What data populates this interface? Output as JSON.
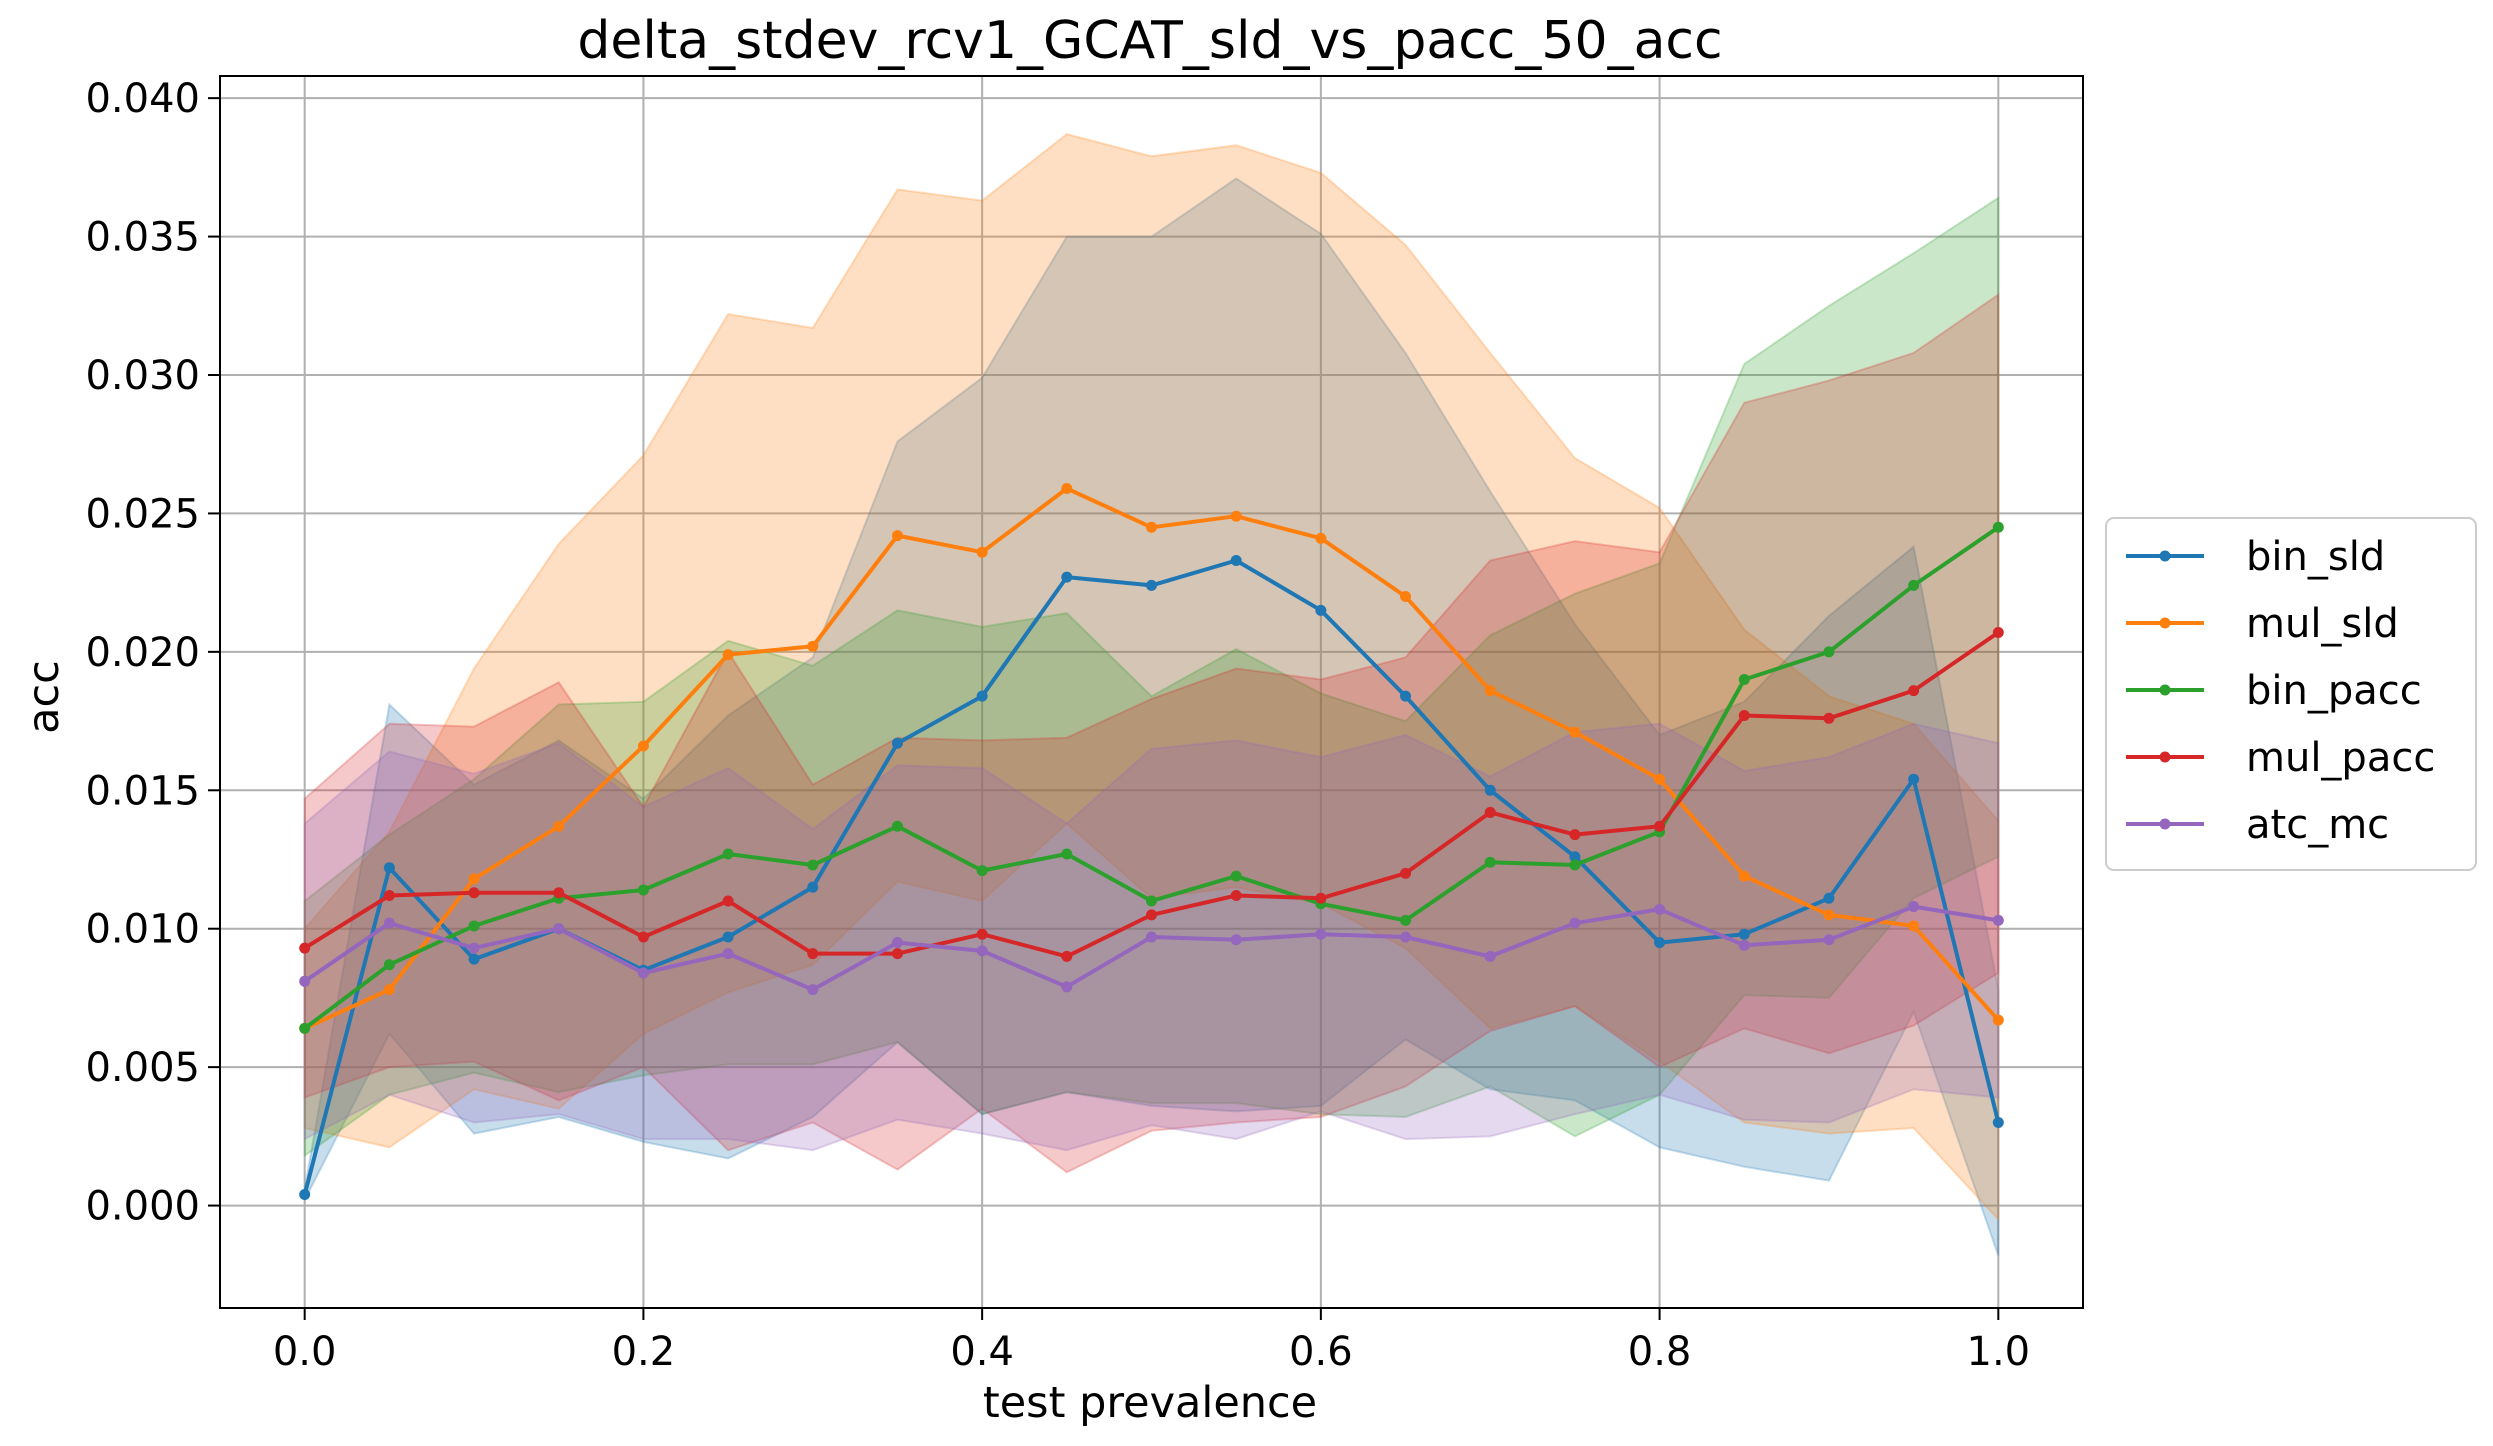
{
  "chart_data": {
    "type": "line",
    "title": "delta_stdev_rcv1_GCAT_sld_vs_pacc_50_acc",
    "xlabel": "test prevalence",
    "ylabel": "acc",
    "xlim": [
      -0.05,
      1.05
    ],
    "ylim": [
      -0.0037,
      0.0408
    ],
    "grid": true,
    "legend_position": "right-outside",
    "x": [
      0.0,
      0.05,
      0.1,
      0.15,
      0.2,
      0.25,
      0.3,
      0.35,
      0.4,
      0.45,
      0.5,
      0.55,
      0.6,
      0.65,
      0.7,
      0.75,
      0.8,
      0.85,
      0.9,
      0.95,
      1.0
    ],
    "x_ticks": [
      "0.0",
      "0.2",
      "0.4",
      "0.6",
      "0.8",
      "1.0"
    ],
    "y_ticks": [
      "0.000",
      "0.005",
      "0.010",
      "0.015",
      "0.020",
      "0.025",
      "0.030",
      "0.035",
      "0.040"
    ],
    "series": [
      {
        "name": "bin_sld",
        "color": "#1f77b4",
        "values": [
          0.0004,
          0.0122,
          0.0089,
          0.01,
          0.0085,
          0.0097,
          0.0115,
          0.0167,
          0.0184,
          0.0227,
          0.0224,
          0.0233,
          0.0215,
          0.0184,
          0.015,
          0.0126,
          0.0095,
          0.0098,
          0.0111,
          0.0154,
          0.003
        ],
        "band_lower": [
          0.0002,
          0.0062,
          0.0026,
          0.0032,
          0.0023,
          0.0017,
          0.0032,
          0.0059,
          0.0033,
          0.0041,
          0.0036,
          0.0034,
          0.0036,
          0.006,
          0.0042,
          0.0038,
          0.0021,
          0.0014,
          0.0009,
          0.007,
          -0.0018
        ],
        "band_upper": [
          0.0006,
          0.0181,
          0.0152,
          0.0168,
          0.0147,
          0.0177,
          0.0198,
          0.0276,
          0.0299,
          0.035,
          0.035,
          0.0371,
          0.0351,
          0.0308,
          0.0258,
          0.021,
          0.017,
          0.0182,
          0.0213,
          0.0238,
          0.0078
        ]
      },
      {
        "name": "mul_sld",
        "color": "#ff7f0e",
        "values": [
          0.0064,
          0.0078,
          0.0118,
          0.0137,
          0.0166,
          0.0199,
          0.0202,
          0.0242,
          0.0236,
          0.0259,
          0.0245,
          0.0249,
          0.0241,
          0.022,
          0.0186,
          0.0171,
          0.0154,
          0.0119,
          0.0105,
          0.0101,
          0.0067
        ],
        "band_lower": [
          0.0028,
          0.0021,
          0.0042,
          0.0035,
          0.0062,
          0.0077,
          0.0087,
          0.0117,
          0.011,
          0.0138,
          0.0111,
          0.0115,
          0.0109,
          0.0093,
          0.0064,
          0.0072,
          0.0052,
          0.003,
          0.0026,
          0.0028,
          -0.0005
        ],
        "band_upper": [
          0.01,
          0.0135,
          0.0194,
          0.0239,
          0.0271,
          0.0322,
          0.0317,
          0.0367,
          0.0363,
          0.0387,
          0.0379,
          0.0383,
          0.0373,
          0.0347,
          0.0308,
          0.027,
          0.0252,
          0.0208,
          0.0184,
          0.0174,
          0.0139
        ]
      },
      {
        "name": "bin_pacc",
        "color": "#2ca02c",
        "values": [
          0.0064,
          0.0087,
          0.0101,
          0.0111,
          0.0114,
          0.0127,
          0.0123,
          0.0137,
          0.0121,
          0.0127,
          0.011,
          0.0119,
          0.0109,
          0.0103,
          0.0124,
          0.0123,
          0.0135,
          0.019,
          0.02,
          0.0224,
          0.0245
        ],
        "band_lower": [
          0.0018,
          0.004,
          0.0048,
          0.0041,
          0.0047,
          0.0051,
          0.0051,
          0.0059,
          0.0033,
          0.0041,
          0.0037,
          0.0037,
          0.0033,
          0.0032,
          0.0043,
          0.0025,
          0.004,
          0.0076,
          0.0075,
          0.0111,
          0.0126
        ],
        "band_upper": [
          0.011,
          0.0134,
          0.0154,
          0.0181,
          0.0182,
          0.0204,
          0.0195,
          0.0215,
          0.0209,
          0.0214,
          0.0184,
          0.0201,
          0.0185,
          0.0175,
          0.0206,
          0.0221,
          0.0232,
          0.0304,
          0.0325,
          0.0344,
          0.0364
        ]
      },
      {
        "name": "mul_pacc",
        "color": "#d62728",
        "values": [
          0.0093,
          0.0112,
          0.0113,
          0.0113,
          0.0097,
          0.011,
          0.0091,
          0.0091,
          0.0098,
          0.009,
          0.0105,
          0.0112,
          0.0111,
          0.012,
          0.0142,
          0.0134,
          0.0137,
          0.0177,
          0.0176,
          0.0186,
          0.0207
        ],
        "band_lower": [
          0.0039,
          0.005,
          0.0052,
          0.0038,
          0.005,
          0.002,
          0.003,
          0.0013,
          0.0035,
          0.0012,
          0.0027,
          0.003,
          0.0032,
          0.0043,
          0.0063,
          0.0072,
          0.005,
          0.0064,
          0.0055,
          0.0065,
          0.0084
        ],
        "band_upper": [
          0.0147,
          0.0174,
          0.0173,
          0.0189,
          0.0144,
          0.02,
          0.0152,
          0.0169,
          0.0168,
          0.0169,
          0.0183,
          0.0194,
          0.019,
          0.0198,
          0.0233,
          0.024,
          0.0236,
          0.029,
          0.0298,
          0.0308,
          0.0329
        ]
      },
      {
        "name": "atc_mc",
        "color": "#9467bd",
        "values": [
          0.0081,
          0.0102,
          0.0093,
          0.01,
          0.0084,
          0.0091,
          0.0078,
          0.0095,
          0.0092,
          0.0079,
          0.0097,
          0.0096,
          0.0098,
          0.0097,
          0.009,
          0.0102,
          0.0107,
          0.0094,
          0.0096,
          0.0108,
          0.0103
        ],
        "band_lower": [
          0.0024,
          0.004,
          0.003,
          0.0033,
          0.0024,
          0.0024,
          0.002,
          0.0031,
          0.0026,
          0.002,
          0.0029,
          0.0024,
          0.0034,
          0.0024,
          0.0025,
          0.0033,
          0.004,
          0.0031,
          0.003,
          0.0042,
          0.0039
        ],
        "band_upper": [
          0.0138,
          0.0164,
          0.0156,
          0.0167,
          0.0144,
          0.0158,
          0.0136,
          0.0159,
          0.0158,
          0.0138,
          0.0165,
          0.0168,
          0.0162,
          0.017,
          0.0155,
          0.0171,
          0.0174,
          0.0157,
          0.0162,
          0.0174,
          0.0167
        ]
      }
    ]
  }
}
